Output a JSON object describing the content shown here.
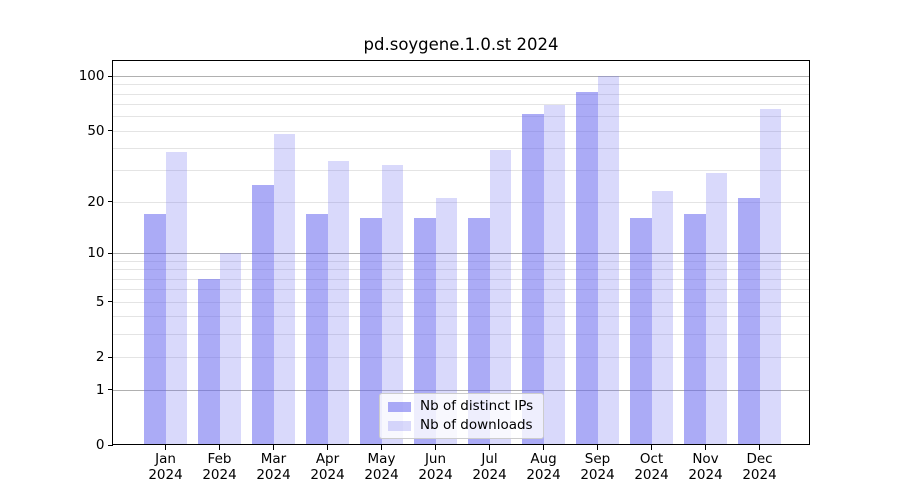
{
  "title": "pd.soygene.1.0.st 2024",
  "chart_data": {
    "type": "bar",
    "title": "pd.soygene.1.0.st 2024",
    "categories": [
      "Jan 2024",
      "Feb 2024",
      "Mar 2024",
      "Apr 2024",
      "May 2024",
      "Jun 2024",
      "Jul 2024",
      "Aug 2024",
      "Sep 2024",
      "Oct 2024",
      "Nov 2024",
      "Dec 2024"
    ],
    "series": [
      {
        "name": "Nb of distinct IPs",
        "values": [
          17,
          7,
          25,
          17,
          16,
          16,
          16,
          62,
          82,
          16,
          17,
          21
        ],
        "color": "#6666ee",
        "alpha": 0.55
      },
      {
        "name": "Nb of downloads",
        "values": [
          38,
          10,
          48,
          34,
          32,
          21,
          39,
          69,
          100,
          23,
          29,
          66
        ],
        "color": "#6666ee",
        "alpha": 0.25
      }
    ],
    "xlabel": "",
    "ylabel": "",
    "yscale": "log10(1+y)",
    "ylim": [
      0,
      123
    ],
    "y_tick_values": [
      0,
      1,
      2,
      5,
      10,
      20,
      50,
      100
    ],
    "y_major_gridlines": [
      1,
      10,
      100
    ],
    "y_minor_gridlines": [
      2,
      3,
      4,
      5,
      6,
      7,
      8,
      9,
      20,
      30,
      40,
      50,
      60,
      70,
      80,
      90
    ],
    "grid": "on",
    "legend_position": "lower center"
  },
  "legend": {
    "items": [
      "Nb of distinct IPs",
      "Nb of downloads"
    ]
  },
  "colors": {
    "bar_base": "#6666ee",
    "bar_distinct_ips_rendered": "#ababf6",
    "bar_downloads_rendered": "#d9d9fa",
    "grid_major": "#b0b0b0",
    "grid_minor": "#e4e4e4",
    "spine": "#000000",
    "text": "#000000",
    "legend_border": "#cccccc",
    "background": "#ffffff"
  }
}
